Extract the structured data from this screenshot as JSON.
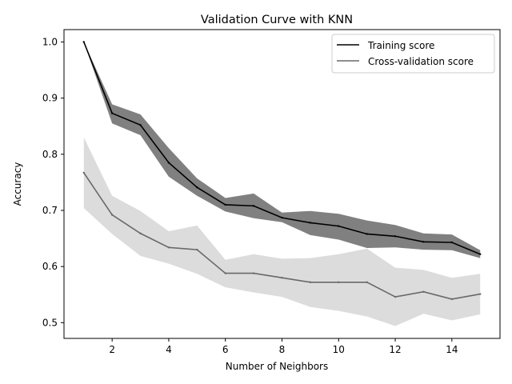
{
  "chart_data": {
    "type": "line",
    "title": "Validation Curve with KNN",
    "xlabel": "Number of Neighbors",
    "ylabel": "Accuracy",
    "xlim": [
      0.3,
      15.7
    ],
    "ylim": [
      0.472,
      1.022
    ],
    "xticks": [
      2,
      4,
      6,
      8,
      10,
      12,
      14
    ],
    "yticks": [
      0.5,
      0.6,
      0.7,
      0.8,
      0.9,
      1.0
    ],
    "grid": false,
    "legend_position": "top-right",
    "x": [
      1,
      2,
      3,
      4,
      5,
      6,
      7,
      8,
      9,
      10,
      11,
      12,
      13,
      14,
      15
    ],
    "series": [
      {
        "name": "Training score",
        "color": "#000000",
        "band_color": "#808080",
        "values": [
          1.0,
          0.873,
          0.852,
          0.785,
          0.741,
          0.71,
          0.708,
          0.687,
          0.678,
          0.672,
          0.658,
          0.654,
          0.644,
          0.643,
          0.622
        ],
        "band_upper": [
          1.0,
          0.889,
          0.871,
          0.811,
          0.757,
          0.722,
          0.73,
          0.696,
          0.699,
          0.694,
          0.682,
          0.674,
          0.659,
          0.657,
          0.629
        ],
        "band_lower": [
          1.0,
          0.855,
          0.834,
          0.76,
          0.726,
          0.698,
          0.686,
          0.679,
          0.656,
          0.648,
          0.633,
          0.634,
          0.63,
          0.629,
          0.615
        ]
      },
      {
        "name": "Cross-validation score",
        "color": "#696969",
        "band_color": "#dcdcdc",
        "values": [
          0.767,
          0.692,
          0.659,
          0.634,
          0.63,
          0.588,
          0.588,
          0.58,
          0.572,
          0.572,
          0.572,
          0.546,
          0.555,
          0.542,
          0.551
        ],
        "band_upper": [
          0.83,
          0.726,
          0.699,
          0.663,
          0.673,
          0.612,
          0.622,
          0.614,
          0.615,
          0.622,
          0.632,
          0.598,
          0.594,
          0.58,
          0.587
        ],
        "band_lower": [
          0.704,
          0.658,
          0.619,
          0.605,
          0.587,
          0.563,
          0.554,
          0.546,
          0.528,
          0.521,
          0.511,
          0.494,
          0.516,
          0.504,
          0.515
        ]
      }
    ]
  }
}
